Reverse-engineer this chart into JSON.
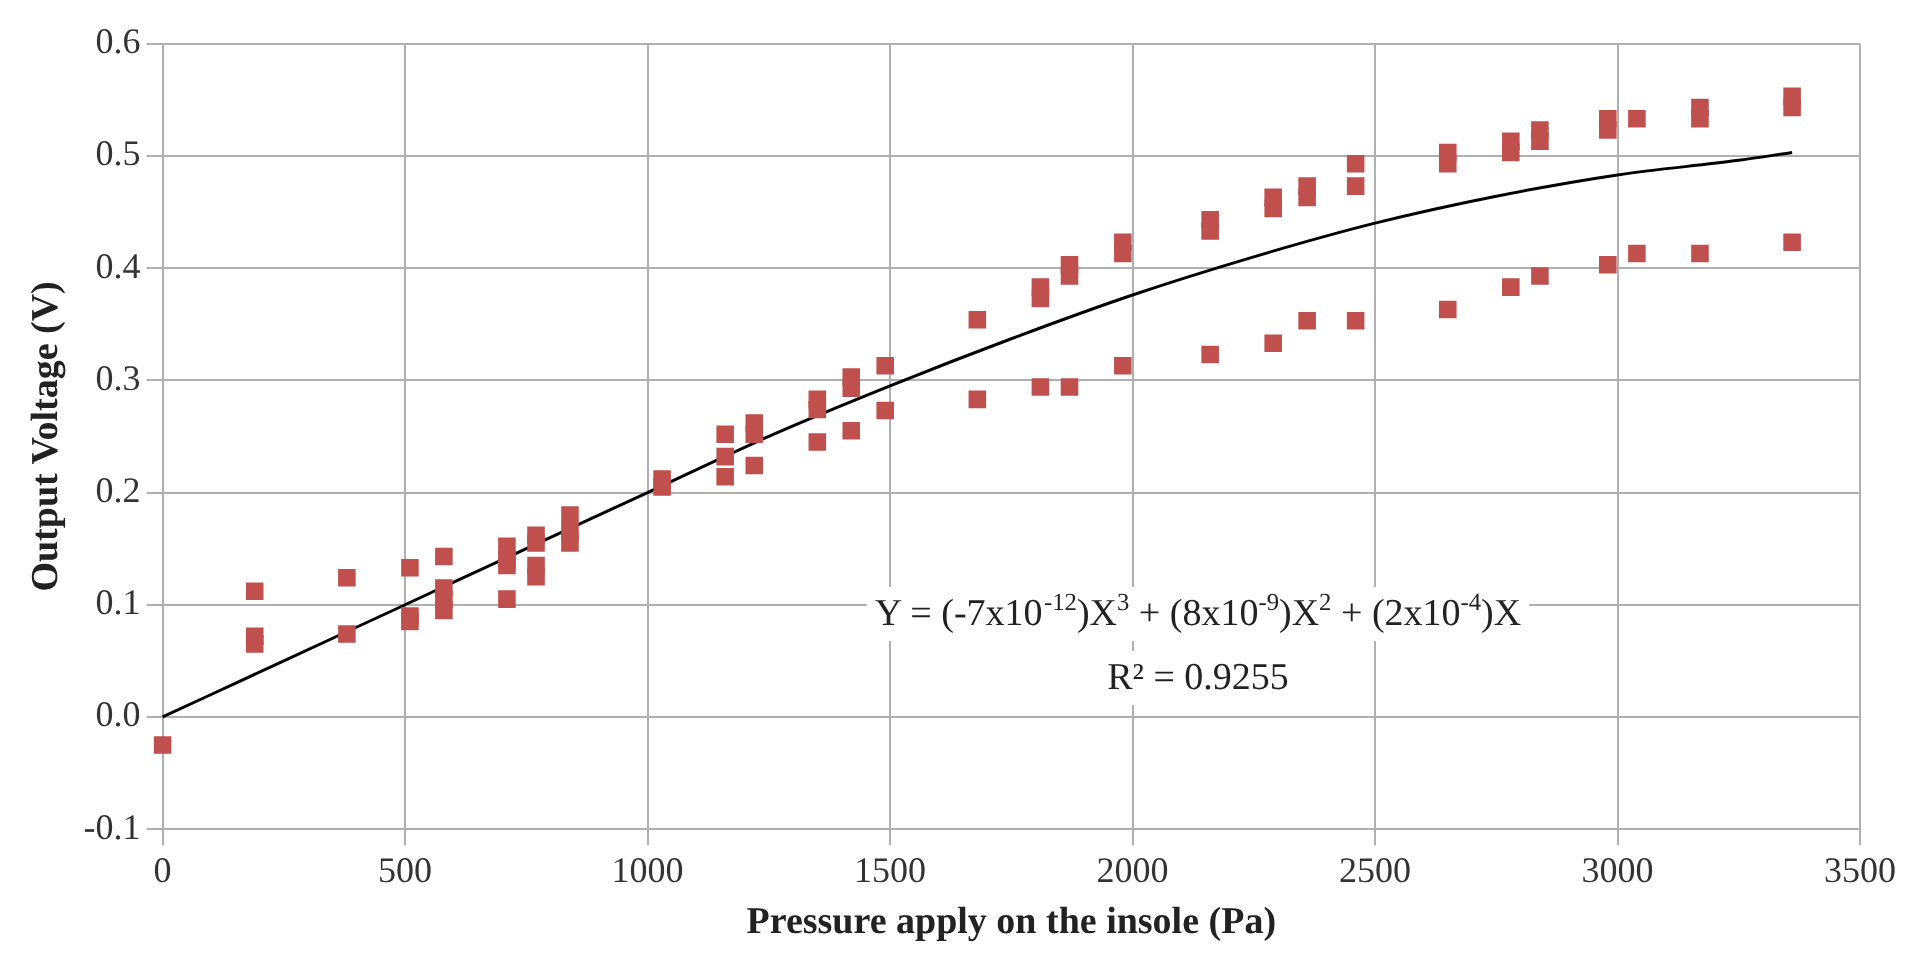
{
  "chart_data": {
    "type": "scatter",
    "xlabel": "Pressure apply on the insole (Pa)",
    "ylabel": "Output Voltage (V)",
    "xlim": [
      0,
      3500
    ],
    "xticks": [
      0,
      500,
      1000,
      1500,
      2000,
      2500,
      3000,
      3500
    ],
    "ylim": [
      -0.1,
      0.6
    ],
    "yticks": [
      {
        "value": -0.1,
        "label": "-0.1"
      },
      {
        "value": 0,
        "label": "0.0"
      },
      {
        "value": 0.1,
        "label": "0.1"
      },
      {
        "value": 0.2,
        "label": "0.2"
      },
      {
        "value": 0.3,
        "label": "0.3"
      },
      {
        "value": 0.4,
        "label": "0.4"
      },
      {
        "value": 0.5,
        "label": "0.5"
      },
      {
        "value": 0.6,
        "label": "0.6"
      }
    ],
    "grid": true,
    "legend": false,
    "annotations": [
      "Y = (-7x10$^{-12}$)X$^{3}$ + (8x10$^{-9}$)X$^{2}$ + (2x10$^{-4}$)X",
      "R² = 0.9255"
    ],
    "series": [
      {
        "color": "#c0504d",
        "marker": "square",
        "x": [
          0,
          190,
          190,
          190,
          380,
          380,
          510,
          510,
          510,
          580,
          580,
          580,
          580,
          710,
          710,
          710,
          710,
          770,
          770,
          770,
          770,
          840,
          840,
          840,
          1030,
          1030,
          1160,
          1160,
          1160,
          1220,
          1220,
          1220,
          1350,
          1350,
          1350,
          1420,
          1420,
          1420,
          1490,
          1490,
          1680,
          1680,
          1810,
          1810,
          1810,
          1870,
          1870,
          1870,
          1980,
          1980,
          1980,
          2160,
          2160,
          2160,
          2290,
          2290,
          2290,
          2360,
          2360,
          2360,
          2460,
          2460,
          2460,
          2650,
          2650,
          2650,
          2780,
          2780,
          2780,
          2840,
          2840,
          2840,
          2980,
          2980,
          2980,
          3040,
          3040,
          3170,
          3170,
          3170,
          3360,
          3360,
          3360
        ],
        "values": [
          -0.025,
          0.112,
          0.072,
          0.065,
          0.124,
          0.074,
          0.133,
          0.09,
          0.085,
          0.143,
          0.115,
          0.105,
          0.095,
          0.152,
          0.14,
          0.135,
          0.105,
          0.162,
          0.155,
          0.135,
          0.125,
          0.18,
          0.165,
          0.155,
          0.212,
          0.205,
          0.252,
          0.232,
          0.214,
          0.262,
          0.252,
          0.224,
          0.283,
          0.274,
          0.245,
          0.303,
          0.293,
          0.255,
          0.313,
          0.273,
          0.354,
          0.283,
          0.383,
          0.373,
          0.294,
          0.403,
          0.393,
          0.294,
          0.423,
          0.413,
          0.313,
          0.443,
          0.433,
          0.323,
          0.463,
          0.453,
          0.333,
          0.473,
          0.463,
          0.353,
          0.493,
          0.473,
          0.353,
          0.503,
          0.493,
          0.363,
          0.513,
          0.503,
          0.383,
          0.523,
          0.513,
          0.393,
          0.533,
          0.523,
          0.403,
          0.533,
          0.413,
          0.543,
          0.533,
          0.413,
          0.553,
          0.543,
          0.423
        ]
      },
      {
        "type": "line",
        "color": "#000000",
        "marker": "none",
        "line_style": "solid",
        "x": [
          0,
          250,
          500,
          750,
          1000,
          1250,
          1500,
          1750,
          2000,
          2250,
          2500,
          2750,
          3000,
          3250,
          3360
        ],
        "values": [
          0,
          0.05,
          0.1,
          0.15,
          0.2,
          0.25,
          0.295,
          0.337,
          0.376,
          0.41,
          0.44,
          0.464,
          0.483,
          0.496,
          0.503
        ]
      }
    ]
  }
}
